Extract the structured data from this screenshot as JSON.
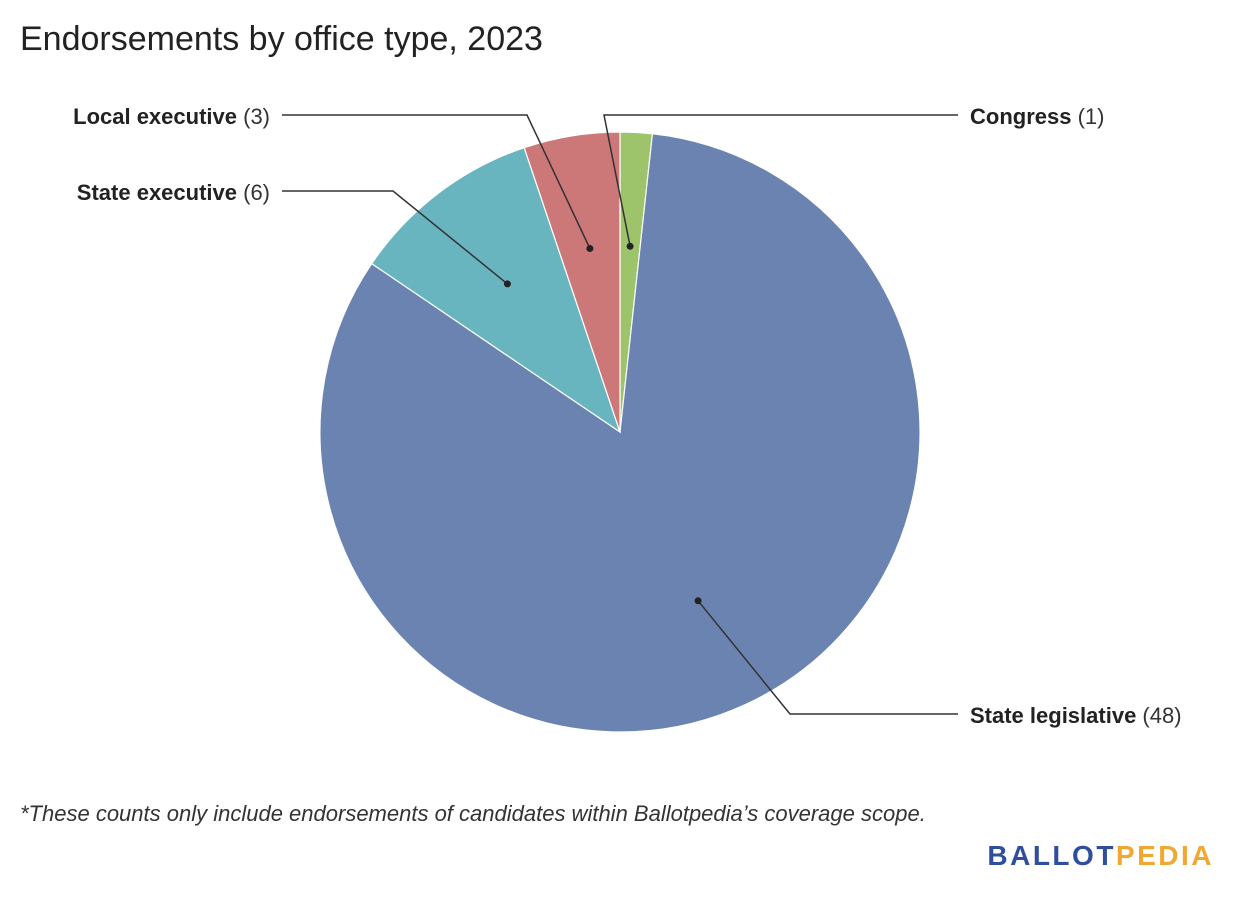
{
  "title": "Endorsements by office type, 2023",
  "footnote": "*These counts only include endorsements of candidates within Ballotpedia’s coverage scope.",
  "logo": {
    "text": "BALLOTPEDIA",
    "part_a": "BALLOT",
    "part_b": "PEDIA",
    "color_a": "#2f4f9e",
    "color_b": "#f0a833"
  },
  "chart_data": {
    "type": "pie",
    "title": "Endorsements by office type, 2023",
    "slices": [
      {
        "label": "Congress",
        "value": 1,
        "value_text": "(1)",
        "color": "#9dc36b"
      },
      {
        "label": "State legislative",
        "value": 48,
        "value_text": "(48)",
        "color": "#6a83b0"
      },
      {
        "label": "State executive",
        "value": 6,
        "value_text": "(6)",
        "color": "#69b5bf"
      },
      {
        "label": "Local executive",
        "value": 3,
        "value_text": "(3)",
        "color": "#cc7879"
      }
    ],
    "start": "12 o'clock",
    "direction": "clockwise",
    "labels": "outside with leader lines"
  }
}
